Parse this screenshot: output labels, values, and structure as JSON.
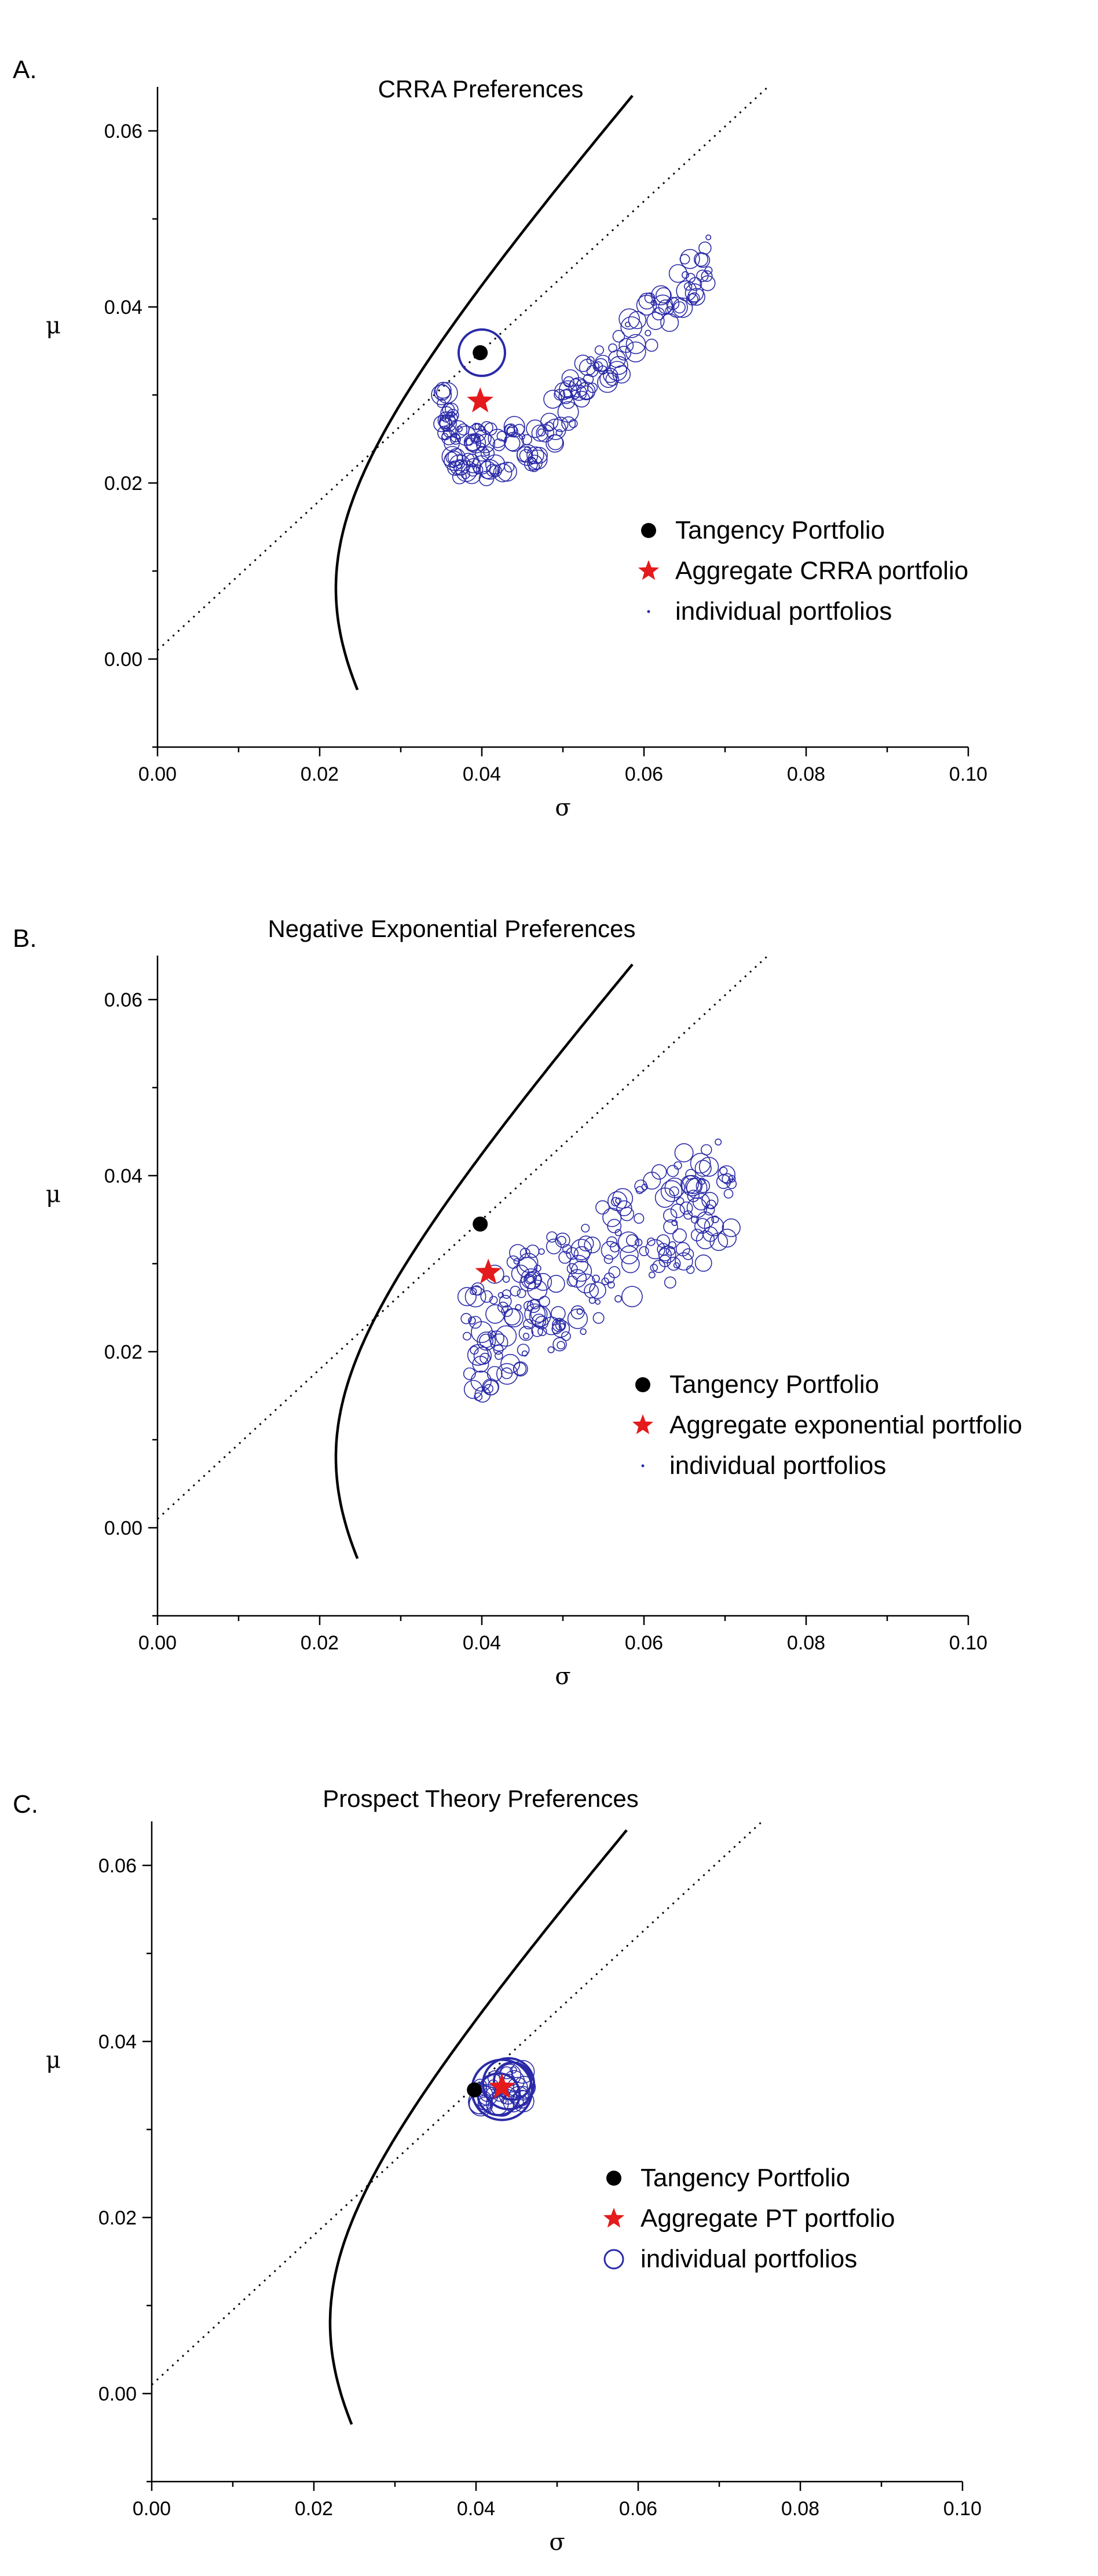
{
  "colors": {
    "tangency": "#000000",
    "aggregate": "#e41a1c",
    "individual": "#2a2aa8"
  },
  "chart_data": [
    {
      "type": "scatter",
      "panel_label": "A.",
      "title": "CRRA Preferences",
      "xlabel": "σ",
      "ylabel": "μ",
      "xlim": [
        0.0,
        0.1
      ],
      "ylim": [
        -0.01,
        0.065
      ],
      "xticks": [
        "0.00",
        "0.02",
        "0.04",
        "0.06",
        "0.08",
        "0.10"
      ],
      "yticks": [
        "0.00",
        "0.02",
        "0.04",
        "0.06"
      ],
      "legend_placement": "lower-right",
      "legend": [
        "Tangency Portfolio",
        "Aggregate CRRA portfolio",
        "individual portfolios"
      ],
      "frontier": {
        "sigma_min": 0.022,
        "mu_at_min": 0.008,
        "curvature": 1.75e-05,
        "mu_from": -0.0035,
        "mu_to": 0.064
      },
      "capital_market_line": {
        "mu_at_zero": 0.001,
        "slope": 0.85,
        "sigma_to": 0.0755
      },
      "tangency": {
        "sigma": 0.0398,
        "mu": 0.0348
      },
      "aggregate": {
        "sigma": 0.0398,
        "mu": 0.0293
      },
      "individual": {
        "cluster_center_sigma": 0.042,
        "cluster_center_mu": 0.024,
        "sigma_range": [
          0.035,
          0.068
        ],
        "mu_range": [
          0.02,
          0.047
        ],
        "extra": [
          {
            "sigma": 0.04,
            "mu": 0.0348,
            "size": 5
          }
        ],
        "count": 200,
        "spread": "upward-band",
        "max_size": 2.0
      }
    },
    {
      "type": "scatter",
      "panel_label": "B.",
      "title": "Negative Exponential Preferences",
      "xlabel": "σ",
      "ylabel": "μ",
      "xlim": [
        0.0,
        0.1
      ],
      "ylim": [
        -0.01,
        0.065
      ],
      "xticks": [
        "0.00",
        "0.02",
        "0.04",
        "0.06",
        "0.08",
        "0.10"
      ],
      "yticks": [
        "0.00",
        "0.02",
        "0.04",
        "0.06"
      ],
      "legend_placement": "lower-right",
      "legend": [
        "Tangency Portfolio",
        "Aggregate exponential portfolio",
        "individual portfolios"
      ],
      "frontier": {
        "sigma_min": 0.022,
        "mu_at_min": 0.008,
        "curvature": 1.75e-05,
        "mu_from": -0.0035,
        "mu_to": 0.064
      },
      "capital_market_line": {
        "mu_at_zero": 0.001,
        "slope": 0.85,
        "sigma_to": 0.0755
      },
      "tangency": {
        "sigma": 0.0398,
        "mu": 0.0345
      },
      "aggregate": {
        "sigma": 0.0408,
        "mu": 0.029
      },
      "individual": {
        "cluster_center_sigma": 0.05,
        "cluster_center_mu": 0.029,
        "sigma_range": [
          0.038,
          0.071
        ],
        "mu_range": [
          0.017,
          0.045
        ],
        "extra": [],
        "count": 230,
        "spread": "wide-band",
        "max_size": 2.0
      }
    },
    {
      "type": "scatter",
      "panel_label": "C.",
      "title": "Prospect Theory Preferences",
      "xlabel": "σ",
      "ylabel": "μ",
      "xlim": [
        0.0,
        0.1
      ],
      "ylim": [
        -0.01,
        0.065
      ],
      "xticks": [
        "0.00",
        "0.02",
        "0.04",
        "0.06",
        "0.08",
        "0.10"
      ],
      "yticks": [
        "0.00",
        "0.02",
        "0.04",
        "0.06"
      ],
      "legend_placement": "lower-right",
      "legend": [
        "Tangency Portfolio",
        "Aggregate PT portfolio",
        "individual portfolios"
      ],
      "frontier": {
        "sigma_min": 0.022,
        "mu_at_min": 0.008,
        "curvature": 1.75e-05,
        "mu_from": -0.0035,
        "mu_to": 0.064
      },
      "capital_market_line": {
        "mu_at_zero": 0.001,
        "slope": 0.85,
        "sigma_to": 0.0755
      },
      "tangency": {
        "sigma": 0.0398,
        "mu": 0.0345
      },
      "aggregate": {
        "sigma": 0.0432,
        "mu": 0.0348
      },
      "individual": {
        "cluster_center_sigma": 0.0432,
        "cluster_center_mu": 0.0348,
        "sigma_range": [
          0.041,
          0.049
        ],
        "mu_range": [
          0.032,
          0.038
        ],
        "extra": [
          {
            "sigma": 0.0432,
            "mu": 0.0345,
            "size": 6.5
          },
          {
            "sigma": 0.044,
            "mu": 0.0352,
            "size": 5.5
          },
          {
            "sigma": 0.0428,
            "mu": 0.034,
            "size": 4.5
          },
          {
            "sigma": 0.0445,
            "mu": 0.0355,
            "size": 4.0
          }
        ],
        "count": 35,
        "spread": "tight",
        "max_size": 2.5
      }
    }
  ]
}
